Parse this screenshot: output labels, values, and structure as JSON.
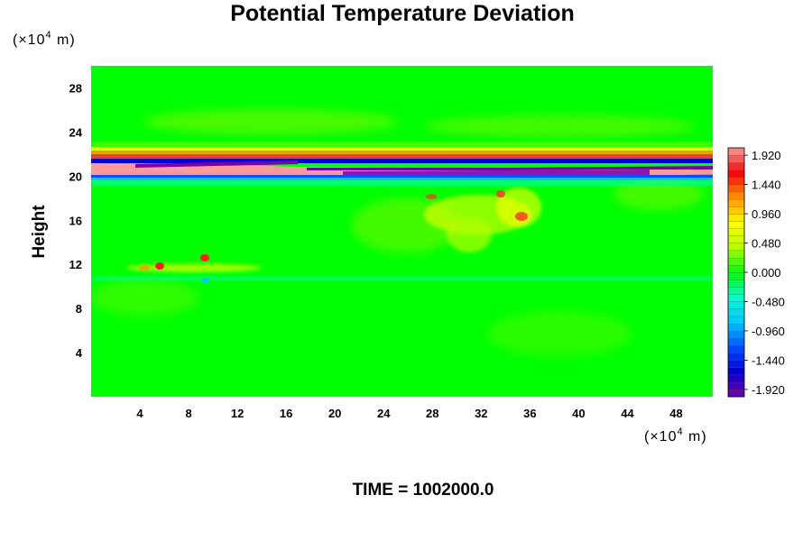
{
  "chart_data": {
    "type": "heatmap",
    "title": "Potential Temperature Deviation",
    "ylabel": "Height",
    "x_unit": {
      "prefix": "(×10",
      "exp": "4",
      "suffix": " m)"
    },
    "y_unit": {
      "prefix": "(×10",
      "exp": "4",
      "suffix": " m)"
    },
    "x_ticks": [
      "4",
      "8",
      "12",
      "16",
      "20",
      "24",
      "28",
      "32",
      "36",
      "40",
      "44",
      "48"
    ],
    "y_ticks": [
      "4",
      "8",
      "12",
      "16",
      "20",
      "24",
      "28"
    ],
    "xlim": [
      0,
      51
    ],
    "ylim": [
      0,
      30
    ],
    "colorbar": {
      "labels": [
        "1.920",
        "1.440",
        "0.960",
        "0.480",
        "0.000",
        "-0.480",
        "-0.960",
        "-1.440",
        "-1.920"
      ],
      "range": [
        -2.04,
        2.04
      ],
      "colors": [
        "#7a00a8",
        "#0000c8",
        "#0050ff",
        "#00c8ff",
        "#00ffd0",
        "#00ff00",
        "#b4ff00",
        "#ffff00",
        "#ff9600",
        "#ff0000",
        "#ff9a9a"
      ]
    },
    "footer": "TIME = 1002000.0"
  }
}
